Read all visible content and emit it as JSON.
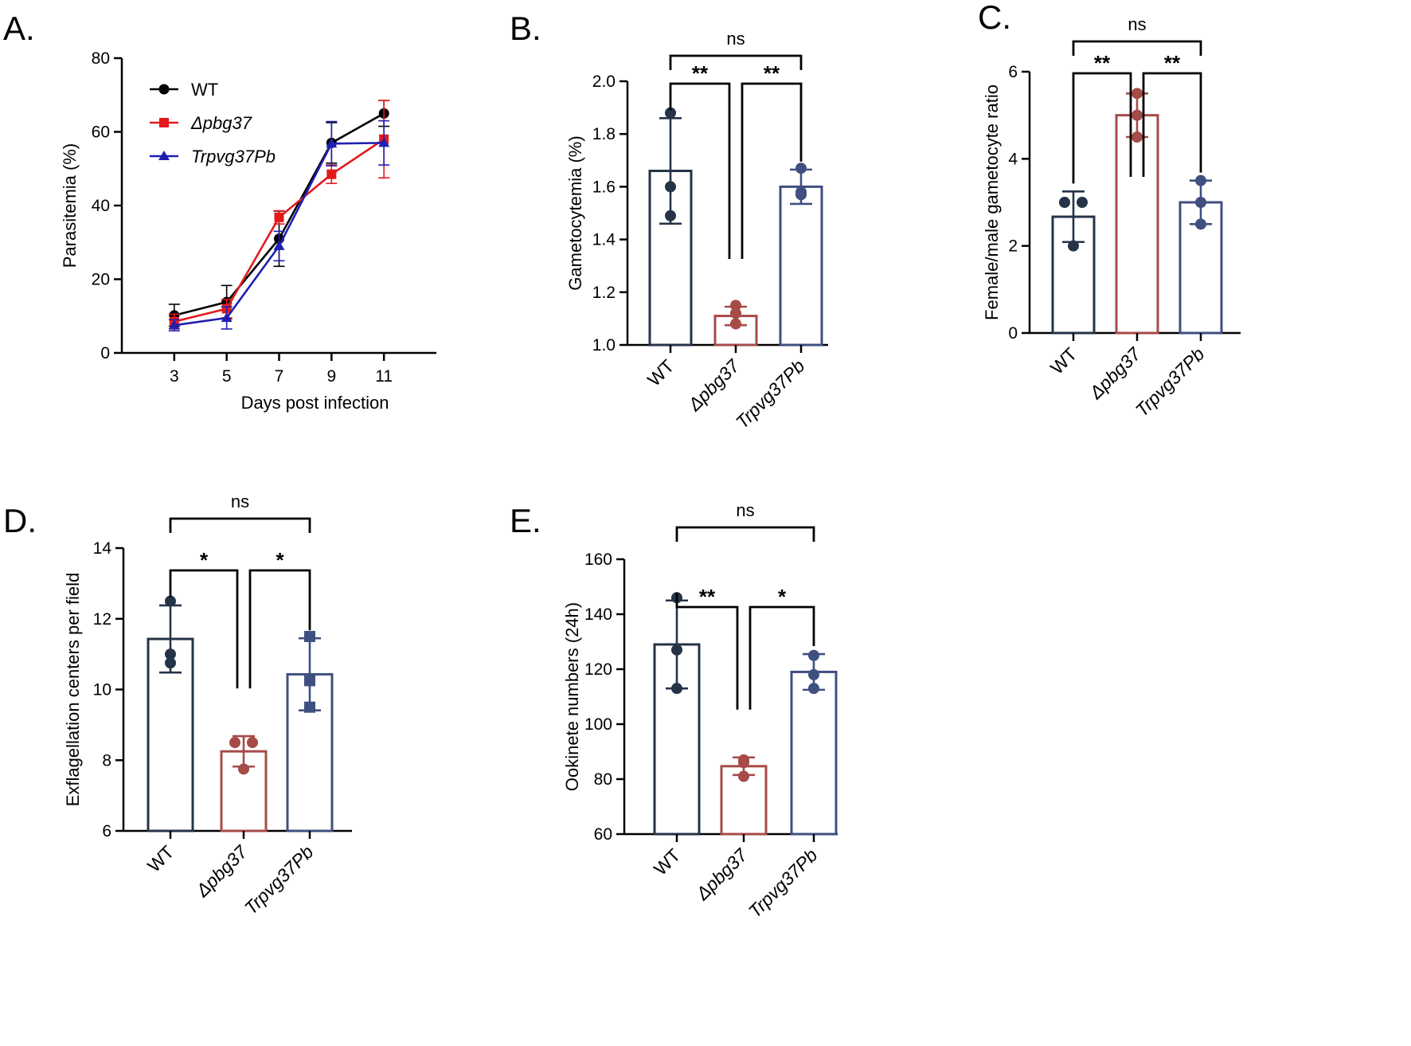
{
  "panels": [
    {
      "id": "A",
      "letter": "A.",
      "chart_data": {
        "type": "line",
        "xlabel": "Days post infection",
        "ylabel": "Parasitemia (%)",
        "x": [
          3,
          5,
          7,
          9,
          11
        ],
        "xlim": [
          1,
          13
        ],
        "ylim": [
          0,
          80
        ],
        "yticks": [
          0,
          20,
          40,
          60,
          80
        ],
        "series": [
          {
            "name": "WT",
            "color": "#000000",
            "marker": "circle",
            "values": [
              10.2,
              13.8,
              31,
              57,
              65
            ],
            "errors": [
              3,
              4.5,
              7.5,
              5.5,
              3.5
            ]
          },
          {
            "name": "Δpbg37",
            "color": "#e31a1c",
            "marker": "square",
            "values": [
              8.5,
              12,
              36.8,
              48.5,
              58
            ],
            "errors": [
              2,
              2.5,
              1.8,
              2.5,
              10.5
            ]
          },
          {
            "name": "Trpvg37Pb",
            "color": "#1f1fb0",
            "marker": "triangle",
            "values": [
              7.5,
              9.5,
              29,
              56.8,
              57
            ],
            "errors": [
              1.5,
              3,
              4,
              6,
              6
            ]
          }
        ]
      }
    },
    {
      "id": "B",
      "letter": "B.",
      "chart_data": {
        "type": "bar",
        "ylabel": "Gametocytemia (%)",
        "categories": [
          "WT",
          "Δpbg37",
          "Trpvg37Pb"
        ],
        "values": [
          1.66,
          1.11,
          1.6
        ],
        "sd": [
          0.2,
          0.035,
          0.065
        ],
        "points": [
          [
            1.88,
            1.6,
            1.49
          ],
          [
            1.15,
            1.12,
            1.08
          ],
          [
            1.67,
            1.58,
            1.57
          ]
        ],
        "colors": [
          "#253348",
          "#a64b47",
          "#3f4f80"
        ],
        "ylim": [
          1.0,
          2.0
        ],
        "yticks": [
          "1.0",
          "1.2",
          "1.4",
          "1.6",
          "1.8",
          "2.0"
        ],
        "comparisons": [
          {
            "pair": [
              0,
              1
            ],
            "label": "**"
          },
          {
            "pair": [
              1,
              2
            ],
            "label": "**"
          },
          {
            "pair": [
              0,
              2
            ],
            "label": "ns"
          }
        ]
      }
    },
    {
      "id": "C",
      "letter": "C.",
      "chart_data": {
        "type": "bar",
        "ylabel": "Female/male gametocyte ratio",
        "categories": [
          "WT",
          "Δpbg37",
          "Trpvg37Pb"
        ],
        "values": [
          2.67,
          5.0,
          3.0
        ],
        "sd": [
          0.58,
          0.5,
          0.5
        ],
        "points": [
          [
            3.0,
            3.0,
            2.0
          ],
          [
            5.5,
            5.0,
            4.5
          ],
          [
            3.5,
            3.0,
            2.5
          ]
        ],
        "colors": [
          "#253348",
          "#a64b47",
          "#3f4f80"
        ],
        "ylim": [
          0,
          6
        ],
        "yticks": [
          "0",
          "2",
          "4",
          "6"
        ],
        "comparisons": [
          {
            "pair": [
              0,
              1
            ],
            "label": "**"
          },
          {
            "pair": [
              1,
              2
            ],
            "label": "**"
          },
          {
            "pair": [
              0,
              2
            ],
            "label": "ns"
          }
        ]
      }
    },
    {
      "id": "D",
      "letter": "D.",
      "chart_data": {
        "type": "bar",
        "ylabel": "Exflagellation centers per field",
        "categories": [
          "WT",
          "Δpbg37",
          "Trpvg37Pb"
        ],
        "values": [
          11.43,
          8.25,
          10.43
        ],
        "sd": [
          0.95,
          0.43,
          1.02
        ],
        "points": [
          [
            12.5,
            11.0,
            10.75
          ],
          [
            8.5,
            8.5,
            7.75
          ],
          [
            11.5,
            10.25,
            9.5
          ]
        ],
        "colors": [
          "#253348",
          "#a64b47",
          "#3f4f80"
        ],
        "marker_shapes": [
          "circle",
          "circle",
          "square"
        ],
        "ylim": [
          6,
          14
        ],
        "yticks": [
          "6",
          "8",
          "10",
          "12",
          "14"
        ],
        "comparisons": [
          {
            "pair": [
              0,
              1
            ],
            "label": "*"
          },
          {
            "pair": [
              1,
              2
            ],
            "label": "*"
          },
          {
            "pair": [
              0,
              2
            ],
            "label": "ns"
          }
        ]
      }
    },
    {
      "id": "E",
      "letter": "E.",
      "chart_data": {
        "type": "bar",
        "ylabel": "Ookinete numbers (24h)",
        "categories": [
          "WT",
          "Δpbg37",
          "Trpvg37Pb"
        ],
        "values": [
          129,
          84.7,
          119
        ],
        "sd": [
          16,
          3.2,
          6.5
        ],
        "points": [
          [
            146,
            127,
            113
          ],
          [
            87,
            86,
            81
          ],
          [
            125,
            118,
            113
          ]
        ],
        "colors": [
          "#253348",
          "#a64b47",
          "#3f4f80"
        ],
        "ylim": [
          60,
          160
        ],
        "yticks": [
          "60",
          "80",
          "100",
          "120",
          "140",
          "160"
        ],
        "comparisons": [
          {
            "pair": [
              0,
              1
            ],
            "label": "**"
          },
          {
            "pair": [
              1,
              2
            ],
            "label": "*"
          },
          {
            "pair": [
              0,
              2
            ],
            "label": "ns"
          }
        ]
      }
    }
  ]
}
